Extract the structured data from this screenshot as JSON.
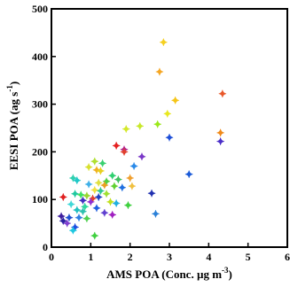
{
  "chart_data": {
    "type": "scatter",
    "marker": "diamond",
    "xlim": [
      0,
      6
    ],
    "ylim": [
      0,
      500
    ],
    "xticks": [
      "0",
      "1",
      "2",
      "3",
      "4",
      "5",
      "6"
    ],
    "yticks": [
      "0",
      "100",
      "200",
      "300",
      "400",
      "500"
    ],
    "xlabel": {
      "main": "AMS POA  (Conc. µg m",
      "sup": "-3",
      "close": ")"
    },
    "ylabel": {
      "main": "EESI POA (ag s",
      "sup": "-1",
      "close": ")"
    },
    "grid": false,
    "legend": false,
    "points": [
      {
        "x": 2.85,
        "y": 430,
        "color": "#f5d020"
      },
      {
        "x": 2.75,
        "y": 368,
        "color": "#f5a623"
      },
      {
        "x": 4.35,
        "y": 322,
        "color": "#e8582a"
      },
      {
        "x": 3.15,
        "y": 308,
        "color": "#f5c518"
      },
      {
        "x": 2.95,
        "y": 280,
        "color": "#e8e820"
      },
      {
        "x": 2.7,
        "y": 258,
        "color": "#9be81a"
      },
      {
        "x": 2.25,
        "y": 254,
        "color": "#c8e82a"
      },
      {
        "x": 1.9,
        "y": 248,
        "color": "#d4e82a"
      },
      {
        "x": 4.3,
        "y": 240,
        "color": "#f08a1a"
      },
      {
        "x": 3.0,
        "y": 230,
        "color": "#1e4fd8"
      },
      {
        "x": 4.3,
        "y": 222,
        "color": "#4b2fc8"
      },
      {
        "x": 1.65,
        "y": 213,
        "color": "#e52222"
      },
      {
        "x": 1.85,
        "y": 205,
        "color": "#b02090"
      },
      {
        "x": 1.85,
        "y": 200,
        "color": "#e04030"
      },
      {
        "x": 2.3,
        "y": 190,
        "color": "#7a38c8"
      },
      {
        "x": 1.1,
        "y": 180,
        "color": "#b0e030"
      },
      {
        "x": 1.3,
        "y": 176,
        "color": "#3ad070"
      },
      {
        "x": 0.95,
        "y": 168,
        "color": "#d8e030"
      },
      {
        "x": 2.1,
        "y": 170,
        "color": "#2a8ae8"
      },
      {
        "x": 1.15,
        "y": 162,
        "color": "#f0b020"
      },
      {
        "x": 1.25,
        "y": 160,
        "color": "#e8d020"
      },
      {
        "x": 3.5,
        "y": 153,
        "color": "#1a5ad8"
      },
      {
        "x": 1.55,
        "y": 150,
        "color": "#30d070"
      },
      {
        "x": 0.55,
        "y": 145,
        "color": "#30d0b0"
      },
      {
        "x": 0.65,
        "y": 140,
        "color": "#20c8c8"
      },
      {
        "x": 1.7,
        "y": 142,
        "color": "#40c060"
      },
      {
        "x": 1.4,
        "y": 138,
        "color": "#50d040"
      },
      {
        "x": 2.0,
        "y": 145,
        "color": "#f0a030"
      },
      {
        "x": 1.2,
        "y": 135,
        "color": "#e0e040"
      },
      {
        "x": 0.95,
        "y": 132,
        "color": "#40b0e8"
      },
      {
        "x": 1.35,
        "y": 130,
        "color": "#e8a020"
      },
      {
        "x": 1.6,
        "y": 128,
        "color": "#60d030"
      },
      {
        "x": 1.8,
        "y": 125,
        "color": "#2070e0"
      },
      {
        "x": 2.05,
        "y": 128,
        "color": "#f0c040"
      },
      {
        "x": 1.1,
        "y": 120,
        "color": "#f0e040"
      },
      {
        "x": 1.25,
        "y": 118,
        "color": "#30c890"
      },
      {
        "x": 0.6,
        "y": 112,
        "color": "#20c8a0"
      },
      {
        "x": 0.75,
        "y": 110,
        "color": "#40e060"
      },
      {
        "x": 1.4,
        "y": 112,
        "color": "#a0e030"
      },
      {
        "x": 2.55,
        "y": 113,
        "color": "#2030b0"
      },
      {
        "x": 0.3,
        "y": 105,
        "color": "#e02020"
      },
      {
        "x": 0.9,
        "y": 108,
        "color": "#9ad830"
      },
      {
        "x": 1.2,
        "y": 105,
        "color": "#2040c0"
      },
      {
        "x": 1.05,
        "y": 102,
        "color": "#e04030"
      },
      {
        "x": 0.8,
        "y": 98,
        "color": "#4030c0"
      },
      {
        "x": 1.0,
        "y": 95,
        "color": "#9030d0"
      },
      {
        "x": 1.5,
        "y": 95,
        "color": "#c0e020"
      },
      {
        "x": 1.65,
        "y": 92,
        "color": "#20b0e0"
      },
      {
        "x": 1.95,
        "y": 88,
        "color": "#40d040"
      },
      {
        "x": 0.5,
        "y": 90,
        "color": "#40d8d8"
      },
      {
        "x": 0.85,
        "y": 85,
        "color": "#30d8a0"
      },
      {
        "x": 1.15,
        "y": 82,
        "color": "#2060e0"
      },
      {
        "x": 0.65,
        "y": 78,
        "color": "#20c0c0"
      },
      {
        "x": 0.8,
        "y": 75,
        "color": "#30c0b0"
      },
      {
        "x": 1.35,
        "y": 72,
        "color": "#6040d0"
      },
      {
        "x": 2.65,
        "y": 70,
        "color": "#2a80d8"
      },
      {
        "x": 1.55,
        "y": 68,
        "color": "#a020c0"
      },
      {
        "x": 0.25,
        "y": 65,
        "color": "#4020a0"
      },
      {
        "x": 0.45,
        "y": 62,
        "color": "#2050d0"
      },
      {
        "x": 0.7,
        "y": 62,
        "color": "#3080e0"
      },
      {
        "x": 0.9,
        "y": 60,
        "color": "#50d050"
      },
      {
        "x": 0.3,
        "y": 55,
        "color": "#2a20a0"
      },
      {
        "x": 0.4,
        "y": 50,
        "color": "#8040d0"
      },
      {
        "x": 0.6,
        "y": 42,
        "color": "#2050e0"
      },
      {
        "x": 0.55,
        "y": 35,
        "color": "#20c8e0"
      },
      {
        "x": 1.1,
        "y": 24,
        "color": "#40d040"
      }
    ]
  }
}
